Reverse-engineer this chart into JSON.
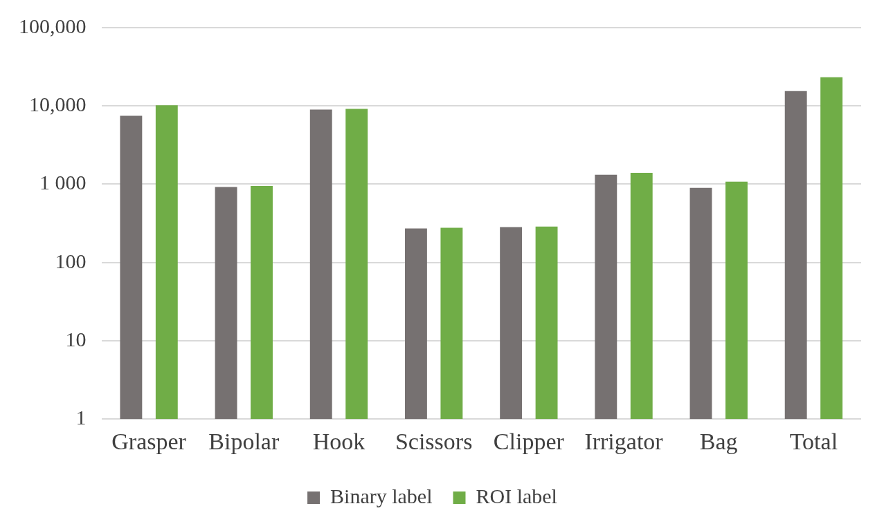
{
  "chart_data": {
    "type": "bar",
    "categories": [
      "Grasper",
      "Bipolar",
      "Hook",
      "Scissors",
      "Clipper",
      "Irrigator",
      "Bag",
      "Total"
    ],
    "series": [
      {
        "name": "Binary label",
        "color": "#767171",
        "values": [
          7500,
          920,
          9000,
          272,
          283,
          1320,
          900,
          15500
        ]
      },
      {
        "name": "ROI label",
        "color": "#70ad47",
        "values": [
          10200,
          950,
          9150,
          277,
          288,
          1400,
          1080,
          23300
        ]
      }
    ],
    "log": "y",
    "ylim": [
      1,
      100000
    ],
    "yticks": [
      1,
      10,
      100,
      {
        "value": 1000,
        "label": "1 000"
      },
      {
        "value": 10000,
        "label": "10,000"
      },
      {
        "value": 100000,
        "label": "100,000"
      }
    ],
    "grid": "y",
    "legend": "bottom"
  }
}
